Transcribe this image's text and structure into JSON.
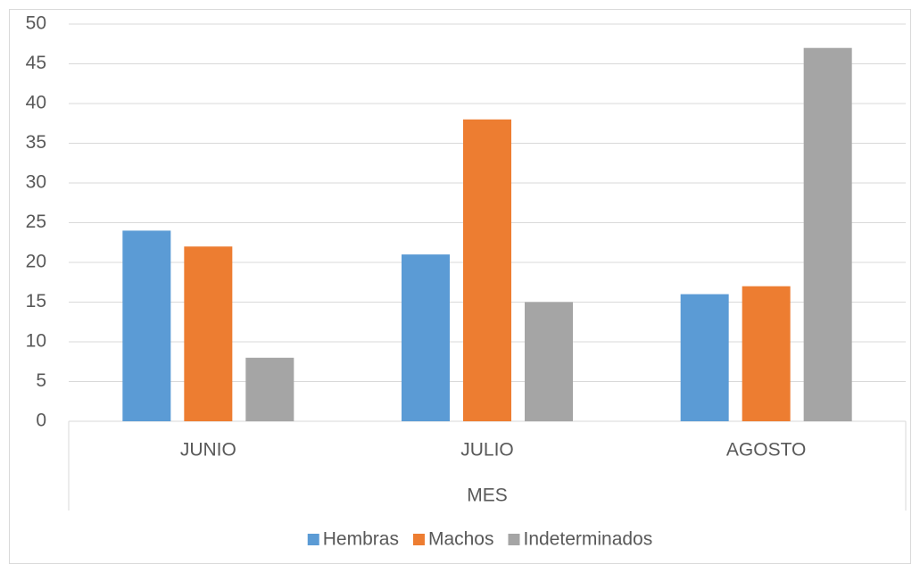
{
  "chart_data": {
    "type": "bar",
    "x_label": "MES",
    "categories": [
      "JUNIO",
      "JULIO",
      "AGOSTO"
    ],
    "series": [
      {
        "name": "Hembras",
        "color": "#5b9bd5",
        "values": [
          24,
          21,
          16
        ]
      },
      {
        "name": "Machos",
        "color": "#ed7d31",
        "values": [
          22,
          38,
          17
        ]
      },
      {
        "name": "Indeterminados",
        "color": "#a5a5a5",
        "values": [
          8,
          15,
          47
        ]
      }
    ],
    "ylim": [
      0,
      50
    ],
    "yticks": [
      0,
      5,
      10,
      15,
      20,
      25,
      30,
      35,
      40,
      45,
      50
    ],
    "grid": true,
    "legend": "bottom"
  }
}
